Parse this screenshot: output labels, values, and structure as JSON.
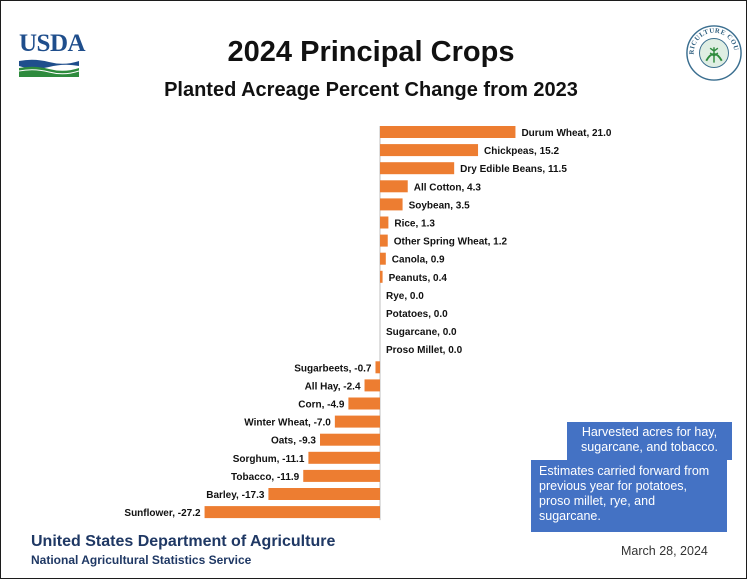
{
  "header": {
    "logo_text": "USDA",
    "title": "2024 Principal Crops",
    "subtitle": "Planted Acreage Percent Change from 2023",
    "seal_text": "AGRICULTURE COUNTS"
  },
  "chart_data": {
    "type": "bar",
    "orientation": "horizontal",
    "categories": [
      "Durum Wheat",
      "Chickpeas",
      "Dry Edible Beans",
      "All Cotton",
      "Soybean",
      "Rice",
      "Other Spring Wheat",
      "Canola",
      "Peanuts",
      "Rye",
      "Potatoes",
      "Sugarcane",
      "Proso Millet",
      "Sugarbeets",
      "All Hay",
      "Corn",
      "Winter Wheat",
      "Oats",
      "Sorghum",
      "Tobacco",
      "Barley",
      "Sunflower"
    ],
    "values": [
      21.0,
      15.2,
      11.5,
      4.3,
      3.5,
      1.3,
      1.2,
      0.9,
      0.4,
      0.0,
      0.0,
      0.0,
      0.0,
      -0.7,
      -2.4,
      -4.9,
      -7.0,
      -9.3,
      -11.1,
      -11.9,
      -17.3,
      -27.2
    ],
    "data_labels": [
      "Durum Wheat, 21.0",
      "Chickpeas, 15.2",
      "Dry Edible Beans, 11.5",
      "All Cotton, 4.3",
      "Soybean, 3.5",
      "Rice, 1.3",
      "Other Spring Wheat, 1.2",
      "Canola, 0.9",
      "Peanuts, 0.4",
      "Rye, 0.0",
      "Potatoes, 0.0",
      "Sugarcane, 0.0",
      "Proso Millet, 0.0",
      "Sugarbeets, -0.7",
      "All Hay, -2.4",
      "Corn, -4.9",
      "Winter Wheat, -7.0",
      "Oats, -9.3",
      "Sorghum, -11.1",
      "Tobacco, -11.9",
      "Barley, -17.3",
      "Sunflower, -27.2"
    ],
    "bar_color": "#ed7d31",
    "axis_color": "#bfbfbf",
    "grid": false,
    "legend": "none",
    "xlim": [
      -27.2,
      21.0
    ]
  },
  "notes": {
    "harvested": "Harvested acres for hay, sugarcane, and tobacco.",
    "estimates": "Estimates carried forward from previous year for potatoes, proso millet, rye, and sugarcane."
  },
  "footer": {
    "agency": "United States Department of Agriculture",
    "service": "National Agricultural Statistics Service",
    "date": "March 28, 2024"
  },
  "colors": {
    "usda_blue": "#1f4e8c",
    "usda_green": "#2e8b3d",
    "note_blue": "#4472c4",
    "agency_navy": "#1f3864"
  },
  "icons": {
    "logo": "usda-logo",
    "seal": "agriculture-counts-seal-icon"
  }
}
